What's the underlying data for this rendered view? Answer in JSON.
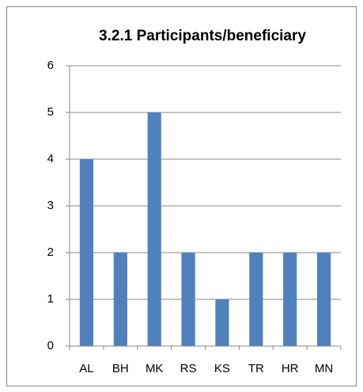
{
  "chart_data": {
    "type": "bar",
    "title": "3.2.1 Participants/beneficiary",
    "categories": [
      "AL",
      "BH",
      "MK",
      "RS",
      "KS",
      "TR",
      "HR",
      "MN"
    ],
    "values": [
      4,
      2,
      5,
      2,
      1,
      2,
      2,
      2
    ],
    "color": "#4f81bd",
    "ylim": [
      0,
      6
    ],
    "yticks": [
      0,
      1,
      2,
      3,
      4,
      5,
      6
    ],
    "grid": true
  }
}
